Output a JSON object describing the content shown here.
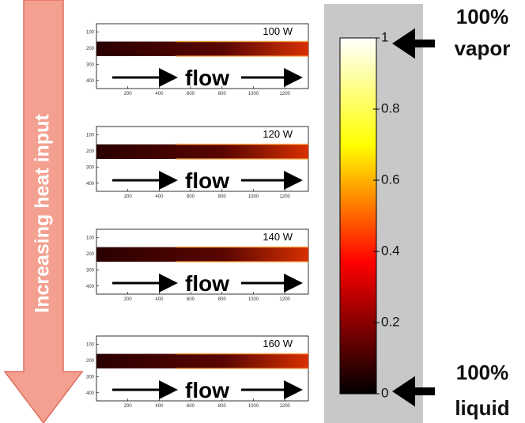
{
  "arrow_label": "Increasing heat input",
  "panels": [
    {
      "label": "100 W",
      "flow": "flow",
      "xlim": [
        0,
        1350
      ],
      "ylim": [
        50,
        450
      ],
      "xticks": [
        200,
        400,
        600,
        800,
        1000,
        1200
      ],
      "yticks": [
        100,
        200,
        300,
        400
      ]
    },
    {
      "label": "120 W",
      "flow": "flow",
      "xlim": [
        0,
        1350
      ],
      "ylim": [
        50,
        450
      ],
      "xticks": [
        200,
        400,
        600,
        800,
        1000,
        1200
      ],
      "yticks": [
        100,
        200,
        300,
        400
      ]
    },
    {
      "label": "140 W",
      "flow": "flow",
      "xlim": [
        0,
        1350
      ],
      "ylim": [
        50,
        450
      ],
      "xticks": [
        200,
        400,
        600,
        800,
        1000,
        1200
      ],
      "yticks": [
        100,
        200,
        300,
        400
      ]
    },
    {
      "label": "160 W",
      "flow": "flow",
      "xlim": [
        0,
        1350
      ],
      "ylim": [
        50,
        450
      ],
      "xticks": [
        200,
        400,
        600,
        800,
        1000,
        1200
      ],
      "yticks": [
        100,
        200,
        300,
        400
      ]
    }
  ],
  "colorbar": {
    "ylim": [
      0,
      1
    ],
    "yticks": [
      0,
      0.2,
      0.4,
      0.6,
      0.8,
      1
    ]
  },
  "annotations": {
    "top": [
      "100%",
      "vapor"
    ],
    "bottom": [
      "100%",
      "liquid"
    ]
  }
}
